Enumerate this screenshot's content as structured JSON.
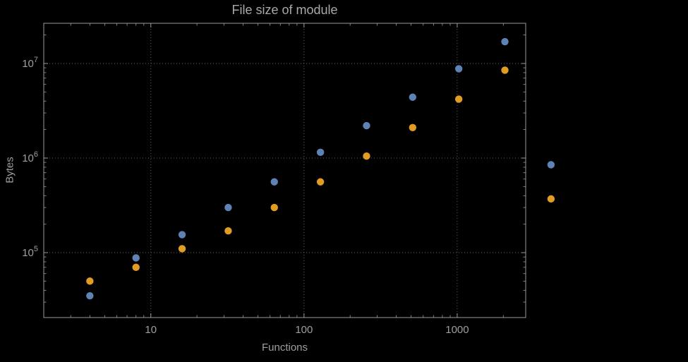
{
  "colors": {
    "background": "#000000",
    "frame": "#9b9b9b",
    "grid": "#5f5f5f",
    "text": "#9e9e9e",
    "title": "#a9a9a9",
    "series_blue": "#5e82b5",
    "series_orange": "#e19c24"
  },
  "chart_data": {
    "type": "scatter",
    "title": "File size of module",
    "xlabel": "Functions",
    "ylabel": "Bytes",
    "x_scale": "log",
    "y_scale": "log",
    "grid": "dotted",
    "legend": "none",
    "xlim": [
      2,
      2800
    ],
    "ylim": [
      20600,
      26600000
    ],
    "x_ticks": [
      10,
      100,
      1000
    ],
    "x_tick_labels": [
      "10",
      "100",
      "1000"
    ],
    "y_ticks": [
      100000,
      1000000,
      10000000
    ],
    "y_tick_labels": [
      {
        "base": "10",
        "exp": "5"
      },
      {
        "base": "10",
        "exp": "6"
      },
      {
        "base": "10",
        "exp": "7"
      }
    ],
    "x": [
      4,
      8,
      16,
      32,
      64,
      128,
      256,
      512,
      1024,
      2048,
      4096
    ],
    "series": [
      {
        "name": "blue",
        "color": "#5e82b5",
        "values": [
          35000,
          88000,
          155000,
          300000,
          560000,
          1150000,
          2200000,
          4400000,
          8800000,
          17000000,
          850000
        ]
      },
      {
        "name": "orange",
        "color": "#e19c24",
        "values": [
          50000,
          70000,
          110000,
          170000,
          300000,
          560000,
          1050000,
          2100000,
          4200000,
          8500000,
          370000
        ]
      }
    ]
  }
}
